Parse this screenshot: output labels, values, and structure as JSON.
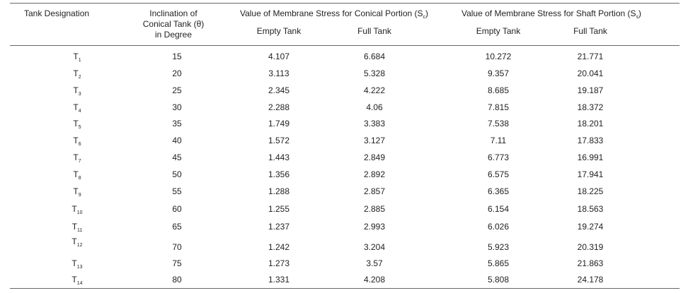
{
  "headers": {
    "designation": "Tank Designation",
    "inclination_line1": "Inclination of",
    "inclination_line2": "Conical Tank (θ)",
    "inclination_line3": "in Degree",
    "conical_prefix": "Value of Membrane Stress for Conical Portion (S",
    "conical_sub": "c",
    "shaft_prefix": "Value of Membrane Stress for Shaft Portion (S",
    "shaft_sub": "s",
    "close_paren": ")",
    "empty_tank": "Empty Tank",
    "full_tank": "Full Tank"
  },
  "rows": [
    {
      "tank": "T",
      "sub": "1",
      "incl": "15",
      "c_empty": "4.107",
      "c_full": "6.684",
      "s_empty": "10.272",
      "s_full": "21.771"
    },
    {
      "tank": "T",
      "sub": "2",
      "incl": "20",
      "c_empty": "3.113",
      "c_full": "5.328",
      "s_empty": "9.357",
      "s_full": "20.041"
    },
    {
      "tank": "T",
      "sub": "3",
      "incl": "25",
      "c_empty": "2.345",
      "c_full": "4.222",
      "s_empty": "8.685",
      "s_full": "19.187"
    },
    {
      "tank": "T",
      "sub": "4",
      "incl": "30",
      "c_empty": "2.288",
      "c_full": "4.06",
      "s_empty": "7.815",
      "s_full": "18.372"
    },
    {
      "tank": "T",
      "sub": "5",
      "incl": "35",
      "c_empty": "1.749",
      "c_full": "3.383",
      "s_empty": "7.538",
      "s_full": "18.201"
    },
    {
      "tank": "T",
      "sub": "6",
      "incl": "40",
      "c_empty": "1.572",
      "c_full": "3.127",
      "s_empty": "7.11",
      "s_full": "17.833"
    },
    {
      "tank": "T",
      "sub": "7",
      "incl": "45",
      "c_empty": "1.443",
      "c_full": "2.849",
      "s_empty": "6.773",
      "s_full": "16.991"
    },
    {
      "tank": "T",
      "sub": "8",
      "incl": "50",
      "c_empty": "1.356",
      "c_full": "2.892",
      "s_empty": "6.575",
      "s_full": "17.941"
    },
    {
      "tank": "T",
      "sub": "9",
      "incl": "55",
      "c_empty": "1.288",
      "c_full": "2.857",
      "s_empty": "6.365",
      "s_full": "18.225"
    },
    {
      "tank": "T",
      "sub": "10",
      "incl": "60",
      "c_empty": "1.255",
      "c_full": "2.885",
      "s_empty": "6.154",
      "s_full": "18.563"
    },
    {
      "tank": "T",
      "sub": "11",
      "incl": "65",
      "c_empty": "1.237",
      "c_full": "2.993",
      "s_empty": "6.026",
      "s_full": "19.274"
    },
    {
      "tank": "T",
      "sub": "12",
      "incl": "70",
      "c_empty": "1.242",
      "c_full": "3.204",
      "s_empty": "5.923",
      "s_full": "20.319"
    },
    {
      "tank": "T",
      "sub": "13",
      "incl": "75",
      "c_empty": "1.273",
      "c_full": "3.57",
      "s_empty": "5.865",
      "s_full": "21.863"
    },
    {
      "tank": "T",
      "sub": "14",
      "incl": "80",
      "c_empty": "1.331",
      "c_full": "4.208",
      "s_empty": "5.808",
      "s_full": "24.178"
    }
  ]
}
